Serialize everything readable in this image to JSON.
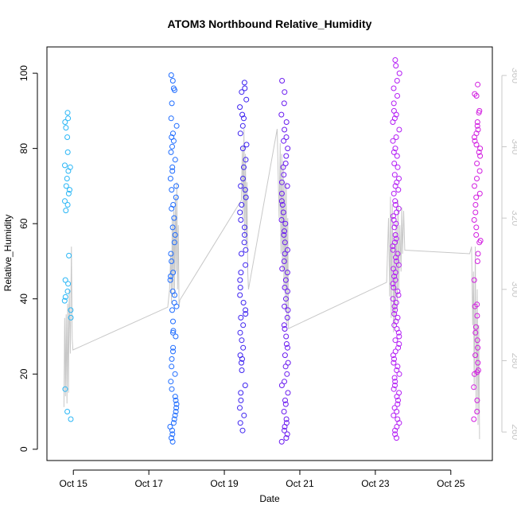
{
  "chart_data": {
    "type": "scatter",
    "title": "ATOM3 Northbound Relative_Humidity",
    "xlabel": "Date",
    "ylabel": "Relative_Humidity",
    "x_ticks": [
      "Oct 15",
      "Oct 17",
      "Oct 19",
      "Oct 21",
      "Oct 23",
      "Oct 25"
    ],
    "y_ticks": [
      0,
      20,
      40,
      60,
      80,
      100
    ],
    "y2_ticks": [
      260,
      280,
      300,
      320,
      340,
      360
    ],
    "xlim_days": [
      14.3,
      26.1
    ],
    "ylim": [
      -3,
      107
    ],
    "y2lim": [
      252,
      368
    ],
    "colors": {
      "point_colors": [
        "#29b6f6",
        "#1e6cff",
        "#3d23f0",
        "#6a1bf0",
        "#b41ef5",
        "#d21ee0"
      ],
      "line_color": "#c8c8c8",
      "frame": "#000000"
    },
    "series": [
      {
        "marker": "open-circle",
        "groups": [
          {
            "day": 14.85,
            "color": "#29b6f6",
            "values": [
              89.5,
              88,
              87,
              85.5,
              83,
              79,
              75.5,
              75,
              74,
              72,
              70,
              69,
              68,
              66,
              65,
              63.5,
              51.5,
              45,
              44,
              42,
              40.5,
              39.5,
              37,
              35,
              16,
              10,
              8
            ]
          },
          {
            "day": 17.65,
            "color": "#1e6cff",
            "values": [
              99.5,
              98,
              96,
              95.5,
              92,
              88,
              86,
              84,
              83,
              82,
              80.5,
              79,
              77,
              75,
              74,
              72,
              70,
              69,
              67,
              65,
              64,
              61.5,
              59,
              57,
              55,
              52,
              50,
              47,
              46,
              45,
              42,
              41,
              39,
              38,
              37,
              34,
              31.5,
              31,
              30,
              27,
              26,
              24,
              22,
              20,
              18,
              16,
              14,
              13,
              12,
              11,
              10,
              9,
              8,
              7,
              6,
              5,
              4,
              3,
              2
            ]
          },
          {
            "day": 19.5,
            "color": "#3d23f0",
            "values": [
              97.5,
              96,
              95,
              93,
              91,
              89,
              88,
              86,
              84,
              81,
              80,
              77,
              75,
              72,
              70,
              69,
              67,
              65,
              63,
              61,
              59,
              57,
              55,
              53,
              52,
              49,
              47,
              45,
              43,
              41,
              39,
              37,
              36,
              35,
              33,
              31,
              29,
              27,
              25,
              24,
              23,
              21,
              17,
              15,
              13,
              11,
              9,
              7,
              5
            ]
          },
          {
            "day": 20.6,
            "color": "#6a1bf0",
            "values": [
              98,
              95,
              92,
              89,
              87,
              85,
              83,
              82,
              80,
              78,
              76,
              75,
              73,
              71,
              70,
              68,
              66,
              65,
              63,
              61,
              60,
              58,
              57,
              55,
              53,
              52,
              50,
              48,
              47,
              45,
              43,
              42,
              40,
              38,
              37,
              35,
              33,
              32,
              30,
              28,
              27,
              25,
              23,
              22,
              20,
              18,
              17,
              15,
              13,
              12,
              10,
              8,
              7,
              6,
              5,
              4,
              3,
              2
            ]
          },
          {
            "day": 23.55,
            "color": "#b41ef5",
            "values": [
              103.5,
              102,
              100,
              98,
              96,
              94,
              92,
              90,
              89,
              88,
              87,
              85,
              83,
              82,
              80,
              79,
              78,
              76,
              75,
              73,
              72,
              71,
              70,
              69,
              68,
              66,
              65,
              64,
              63,
              62,
              61,
              60,
              59,
              57,
              56,
              55,
              54,
              53,
              52,
              51,
              50,
              49,
              48,
              47,
              46,
              45,
              44,
              43,
              42,
              41,
              40,
              39,
              38,
              37,
              36,
              35,
              34,
              33,
              32,
              31,
              30,
              29,
              28,
              27,
              26,
              25,
              24,
              23,
              22,
              21,
              20,
              19,
              18,
              17,
              16,
              15,
              14,
              13,
              12,
              11,
              10,
              9,
              8,
              7,
              6,
              5,
              4,
              3
            ]
          },
          {
            "day": 25.7,
            "color": "#d21ee0",
            "values": [
              97,
              94.5,
              94,
              90,
              89.5,
              87,
              86,
              85,
              84,
              83,
              82,
              81,
              80,
              79,
              78,
              76,
              74,
              72,
              70,
              68,
              67,
              65,
              63,
              61,
              59,
              57,
              55.5,
              55,
              52,
              50,
              45,
              38.5,
              38,
              35.5,
              32.5,
              31,
              29,
              27,
              25,
              23,
              21,
              20.5,
              20,
              16.5,
              13,
              10,
              8
            ]
          }
        ]
      },
      {
        "name_hidden": true,
        "kind": "line-right-axis",
        "points": [
          [
            14.75,
            267
          ],
          [
            14.77,
            292
          ],
          [
            14.79,
            270
          ],
          [
            14.81,
            293
          ],
          [
            14.83,
            268
          ],
          [
            14.85,
            296
          ],
          [
            14.87,
            271
          ],
          [
            14.89,
            300
          ],
          [
            14.92,
            282
          ],
          [
            14.95,
            312
          ],
          [
            14.97,
            286
          ],
          [
            14.99,
            283
          ],
          [
            17.5,
            295
          ],
          [
            17.55,
            300
          ],
          [
            17.58,
            310
          ],
          [
            17.6,
            296
          ],
          [
            17.62,
            320
          ],
          [
            17.64,
            300
          ],
          [
            17.66,
            322
          ],
          [
            17.68,
            298
          ],
          [
            17.7,
            326
          ],
          [
            17.72,
            305
          ],
          [
            17.74,
            330
          ],
          [
            17.76,
            300
          ],
          [
            17.78,
            318
          ],
          [
            17.8,
            295
          ],
          [
            17.82,
            297
          ],
          [
            19.45,
            325
          ],
          [
            19.48,
            340
          ],
          [
            19.5,
            320
          ],
          [
            19.52,
            345
          ],
          [
            19.54,
            315
          ],
          [
            19.56,
            338
          ],
          [
            19.58,
            312
          ],
          [
            19.6,
            330
          ],
          [
            19.62,
            305
          ],
          [
            19.64,
            300
          ],
          [
            20.4,
            345
          ],
          [
            20.45,
            320
          ],
          [
            20.48,
            341
          ],
          [
            20.5,
            310
          ],
          [
            20.52,
            338
          ],
          [
            20.54,
            305
          ],
          [
            20.56,
            336
          ],
          [
            20.58,
            300
          ],
          [
            20.6,
            330
          ],
          [
            20.62,
            294
          ],
          [
            20.64,
            330
          ],
          [
            20.66,
            290
          ],
          [
            20.68,
            320
          ],
          [
            20.7,
            289
          ],
          [
            23.3,
            302
          ],
          [
            23.35,
            320
          ],
          [
            23.38,
            298
          ],
          [
            23.4,
            326
          ],
          [
            23.42,
            292
          ],
          [
            23.45,
            324
          ],
          [
            23.48,
            288
          ],
          [
            23.5,
            316
          ],
          [
            23.52,
            290
          ],
          [
            23.55,
            320
          ],
          [
            23.58,
            294
          ],
          [
            23.6,
            325
          ],
          [
            23.62,
            300
          ],
          [
            23.65,
            318
          ],
          [
            23.68,
            305
          ],
          [
            23.7,
            323
          ],
          [
            23.72,
            310
          ],
          [
            23.75,
            322
          ],
          [
            23.78,
            311
          ],
          [
            25.5,
            310
          ],
          [
            25.55,
            312
          ],
          [
            25.58,
            290
          ],
          [
            25.6,
            305
          ],
          [
            25.62,
            272
          ],
          [
            25.65,
            312
          ],
          [
            25.67,
            265
          ],
          [
            25.7,
            300
          ],
          [
            25.72,
            262
          ],
          [
            25.74,
            290
          ],
          [
            25.76,
            258
          ]
        ]
      }
    ]
  }
}
